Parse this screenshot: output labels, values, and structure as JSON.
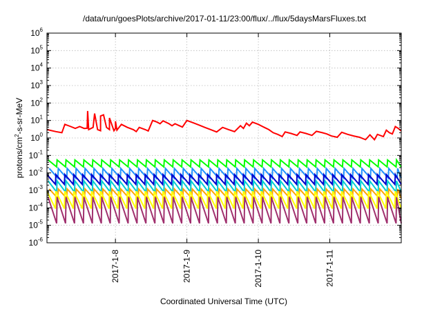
{
  "chart_data": {
    "type": "line",
    "title": "/data/run/goesPlots/archive/2017-01-11/23:00/flux/../flux/5daysMarsFluxes.txt",
    "xlabel": "Coordinated Universal Time (UTC)",
    "ylabel_parts": [
      "protons/cm",
      "2",
      "-s-sr-MeV"
    ],
    "yscale": "log",
    "ylim": [
      1e-06,
      1000000.0
    ],
    "yticks": [
      {
        "base": "10",
        "exp": "-6"
      },
      {
        "base": "10",
        "exp": "-5"
      },
      {
        "base": "10",
        "exp": "-4"
      },
      {
        "base": "10",
        "exp": "-3"
      },
      {
        "base": "10",
        "exp": "-2"
      },
      {
        "base": "10",
        "exp": "-1"
      },
      {
        "base": "10",
        "exp": "0"
      },
      {
        "base": "10",
        "exp": "1"
      },
      {
        "base": "10",
        "exp": "2"
      },
      {
        "base": "10",
        "exp": "3"
      },
      {
        "base": "10",
        "exp": "4"
      },
      {
        "base": "10",
        "exp": "5"
      },
      {
        "base": "10",
        "exp": "6"
      }
    ],
    "xlim": [
      "2017-01-07 01:00",
      "2017-01-12 00:00"
    ],
    "xticks": [
      {
        "label": "2017-1-8",
        "value": "2017-01-08 00:00"
      },
      {
        "label": "2017-1-9",
        "value": "2017-01-09 00:00"
      },
      {
        "label": "2017-1-10",
        "value": "2017-01-10 00:00"
      },
      {
        "label": "2017-1-11",
        "value": "2017-01-11 00:00"
      }
    ],
    "grid": true,
    "series": [
      {
        "color": "#ff0000",
        "points": [
          [
            "2017-01-07 01:00",
            3
          ],
          [
            "2017-01-07 04:00",
            2.3
          ],
          [
            "2017-01-07 06:00",
            2
          ],
          [
            "2017-01-07 07:00",
            6
          ],
          [
            "2017-01-07 09:00",
            4.5
          ],
          [
            "2017-01-07 10:30",
            3.5
          ],
          [
            "2017-01-07 12:00",
            4.5
          ],
          [
            "2017-01-07 13:30",
            3.5
          ],
          [
            "2017-01-07 15:00",
            3
          ],
          [
            "2017-01-07 16:30",
            4
          ],
          [
            "2017-01-07 18:00",
            3
          ],
          [
            "2017-01-07 19:00",
            2.6
          ],
          [
            "2017-01-07 21:00",
            4
          ],
          [
            "2017-01-07 22:00",
            3
          ],
          [
            "2017-01-07 23:30",
            2.6
          ],
          [
            "2017-01-08 00:00",
            3.5
          ],
          [
            "2017-01-08 00:30",
            2.8
          ],
          [
            "2017-01-07 14:30",
            3.6
          ],
          [
            "2017-01-07 14:40",
            35
          ],
          [
            "2017-01-07 17:00",
            25
          ],
          [
            "2017-01-07 19:00",
            18
          ],
          [
            "2017-01-07 20:00",
            21
          ],
          [
            "2017-01-07 22:00",
            14
          ],
          [
            "2017-01-08 00:00",
            9
          ],
          [
            "2017-01-08 02:00",
            6
          ],
          [
            "2017-01-08 04:00",
            4
          ],
          [
            "2017-01-08 06:00",
            3
          ],
          [
            "2017-01-08 07:00",
            2.3
          ],
          [
            "2017-01-08 08:00",
            4
          ],
          [
            "2017-01-08 10:00",
            3
          ],
          [
            "2017-01-08 11:00",
            2.5
          ],
          [
            "2017-01-08 12:30",
            10
          ],
          [
            "2017-01-08 14:00",
            8
          ],
          [
            "2017-01-08 15:00",
            6.5
          ],
          [
            "2017-01-08 16:00",
            9.5
          ],
          [
            "2017-01-08 18:00",
            6.5
          ],
          [
            "2017-01-08 19:00",
            5
          ],
          [
            "2017-01-08 20:00",
            6.5
          ],
          [
            "2017-01-08 21:30",
            5
          ],
          [
            "2017-01-08 22:30",
            4.2
          ],
          [
            "2017-01-09 00:00",
            10
          ],
          [
            "2017-01-09 02:00",
            7.5
          ],
          [
            "2017-01-09 04:00",
            5.5
          ],
          [
            "2017-01-09 06:00",
            4
          ],
          [
            "2017-01-09 08:00",
            3
          ],
          [
            "2017-01-09 10:00",
            2.2
          ],
          [
            "2017-01-09 12:00",
            4
          ],
          [
            "2017-01-09 14:00",
            3
          ],
          [
            "2017-01-09 16:00",
            2.3
          ],
          [
            "2017-01-09 18:00",
            5
          ],
          [
            "2017-01-09 19:00",
            3.5
          ],
          [
            "2017-01-09 20:00",
            7
          ],
          [
            "2017-01-09 21:00",
            5
          ],
          [
            "2017-01-09 22:00",
            8
          ],
          [
            "2017-01-10 00:00",
            6
          ],
          [
            "2017-01-10 02:00",
            4
          ],
          [
            "2017-01-10 03:30",
            3
          ],
          [
            "2017-01-10 05:00",
            2
          ],
          [
            "2017-01-10 06:30",
            1.6
          ],
          [
            "2017-01-10 08:00",
            1.2
          ],
          [
            "2017-01-10 09:00",
            2.2
          ],
          [
            "2017-01-10 11:00",
            1.8
          ],
          [
            "2017-01-10 13:00",
            1.4
          ],
          [
            "2017-01-10 14:00",
            2.2
          ],
          [
            "2017-01-10 16:00",
            1.8
          ],
          [
            "2017-01-10 18:00",
            1.4
          ],
          [
            "2017-01-10 19:30",
            2.4
          ],
          [
            "2017-01-10 21:30",
            2
          ],
          [
            "2017-01-10 23:00",
            1.7
          ],
          [
            "2017-01-11 00:30",
            1.3
          ],
          [
            "2017-01-11 02:30",
            1.1
          ],
          [
            "2017-01-11 04:00",
            2.1
          ],
          [
            "2017-01-11 06:00",
            1.6
          ],
          [
            "2017-01-11 08:00",
            1.3
          ],
          [
            "2017-01-11 10:00",
            1.1
          ],
          [
            "2017-01-11 12:00",
            0.8
          ],
          [
            "2017-01-11 13:30",
            1.5
          ],
          [
            "2017-01-11 15:00",
            0.8
          ],
          [
            "2017-01-11 16:00",
            1.6
          ],
          [
            "2017-01-11 18:00",
            1.2
          ],
          [
            "2017-01-11 19:00",
            2.8
          ],
          [
            "2017-01-11 20:00",
            2
          ],
          [
            "2017-01-11 21:00",
            1.7
          ],
          [
            "2017-01-11 22:00",
            4.5
          ],
          [
            "2017-01-11 23:00",
            3.5
          ],
          [
            "2017-01-12 00:00",
            2.5
          ]
        ]
      },
      {
        "color": "#00ff00",
        "peak": 0.055,
        "trough": 0.022
      },
      {
        "color": "#1e90ff",
        "peak": 0.018,
        "trough": 0.005
      },
      {
        "color": "#0000cd",
        "peak": 0.008,
        "trough": 0.0022
      },
      {
        "color": "#00ced1",
        "peak": 0.0035,
        "trough": 0.0008
      },
      {
        "color": "#ffa500",
        "peak": 0.0012,
        "trough": 0.00035
      },
      {
        "color": "#ffff00",
        "peak": 0.0009,
        "trough": 9e-05
      },
      {
        "color": "#a0306e",
        "peak": 0.0004,
        "trough": 1.3e-05
      }
    ],
    "sawtooth_period_hours": 3
  }
}
